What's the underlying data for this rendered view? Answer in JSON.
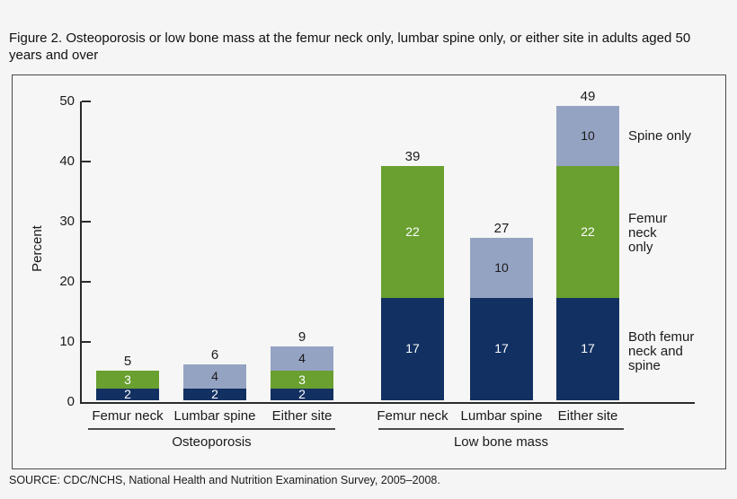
{
  "title": "Figure 2. Osteoporosis or low bone mass at the femur neck only, lumbar spine only, or either site in adults aged 50 years and over",
  "source": "SOURCE: CDC/NCHS, National Health and Nutrition Examination Survey, 2005–2008.",
  "chart_data": {
    "type": "bar",
    "stacked": true,
    "title": "Osteoporosis or low bone mass at the femur neck only, lumbar spine only, or either site in adults aged 50 years and over",
    "ylabel": "Percent",
    "xlabel": "",
    "ylim": [
      0,
      50
    ],
    "yticks": [
      0,
      10,
      20,
      30,
      40,
      50
    ],
    "grid": false,
    "legend_position": "right",
    "series": [
      {
        "key": "spine",
        "label": "Spine only",
        "color": "#95a3c3",
        "text_color": "#1a1a1a"
      },
      {
        "key": "femur",
        "label": "Femur neck only",
        "color": "#69a030",
        "text_color": "#ffffff"
      },
      {
        "key": "both",
        "label": "Both femur neck and spine",
        "color": "#123061",
        "text_color": "#ffffff"
      }
    ],
    "groups": [
      {
        "label": "Osteoporosis",
        "bars": [
          {
            "label": "Femur neck",
            "total": 5,
            "segments": [
              {
                "series": "both",
                "value": 2
              },
              {
                "series": "femur",
                "value": 3
              }
            ]
          },
          {
            "label": "Lumbar spine",
            "total": 6,
            "segments": [
              {
                "series": "both",
                "value": 2
              },
              {
                "series": "spine",
                "value": 4
              }
            ]
          },
          {
            "label": "Either site",
            "total": 9,
            "segments": [
              {
                "series": "both",
                "value": 2
              },
              {
                "series": "femur",
                "value": 3
              },
              {
                "series": "spine",
                "value": 4
              }
            ]
          }
        ]
      },
      {
        "label": "Low bone mass",
        "bars": [
          {
            "label": "Femur neck",
            "total": 39,
            "segments": [
              {
                "series": "both",
                "value": 17
              },
              {
                "series": "femur",
                "value": 22
              }
            ]
          },
          {
            "label": "Lumbar spine",
            "total": 27,
            "segments": [
              {
                "series": "both",
                "value": 17
              },
              {
                "series": "spine",
                "value": 10
              }
            ]
          },
          {
            "label": "Either site",
            "total": 49,
            "segments": [
              {
                "series": "both",
                "value": 17
              },
              {
                "series": "femur",
                "value": 22
              },
              {
                "series": "spine",
                "value": 10
              }
            ]
          }
        ]
      }
    ]
  }
}
